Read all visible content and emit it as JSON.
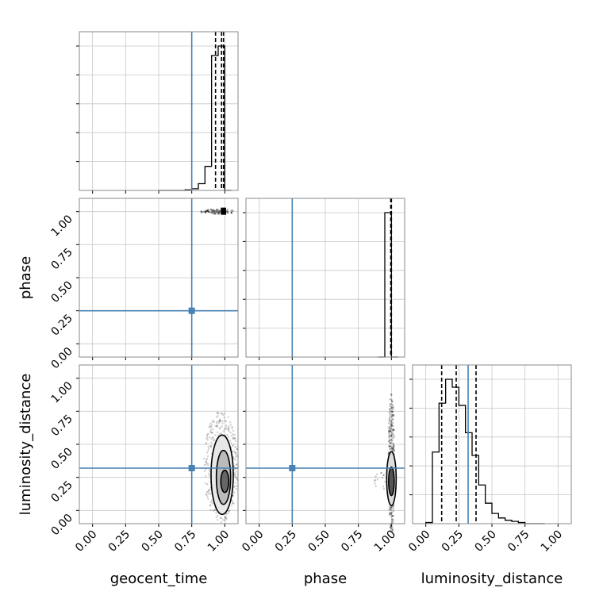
{
  "chart_data": {
    "type": "corner",
    "params": [
      "geocent_time",
      "phase",
      "luminosity_distance"
    ],
    "axis_labels": {
      "geocent_time": "geocent_time",
      "phase": "phase",
      "luminosity_distance": "luminosity_distance"
    },
    "ticks": [
      0.0,
      0.25,
      0.5,
      0.75,
      1.0
    ],
    "tick_labels": [
      "0.00",
      "0.25",
      "0.50",
      "0.75",
      "1.00"
    ],
    "range": [
      -0.1,
      1.1
    ],
    "grid": true,
    "truth_color": "#4682b4",
    "truths": {
      "geocent_time": 0.75,
      "phase": 0.25,
      "luminosity_distance": 0.32
    },
    "histograms": {
      "geocent_time": {
        "bin_edges": [
          0.5,
          0.55,
          0.6,
          0.65,
          0.7,
          0.75,
          0.8,
          0.85,
          0.9,
          0.95,
          1.0,
          1.05
        ],
        "counts": [
          0,
          0,
          0,
          0,
          1,
          3,
          12,
          43,
          241,
          258,
          0
        ],
        "quantiles": [
          0.93,
          0.975,
          0.99
        ]
      },
      "phase": {
        "bin_edges": [
          0.9,
          0.95,
          1.0,
          1.05
        ],
        "counts": [
          0,
          1,
          0
        ],
        "quantiles": [
          0.995,
          0.998,
          1.0
        ]
      },
      "luminosity_distance": {
        "bin_edges": [
          0.0,
          0.05,
          0.1,
          0.15,
          0.2,
          0.25,
          0.3,
          0.35,
          0.4,
          0.45,
          0.5,
          0.55,
          0.6,
          0.65,
          0.7,
          0.75,
          0.8,
          0.85,
          0.9
        ],
        "counts": [
          1,
          63,
          106,
          127,
          120,
          104,
          80,
          60,
          34,
          18,
          9,
          5,
          3,
          2,
          1,
          0,
          0,
          0
        ],
        "quantiles": [
          0.12,
          0.23,
          0.38
        ]
      }
    },
    "scatter": {
      "phase_vs_geocent_time": {
        "x": [
          0.93,
          1.0
        ],
        "y": [
          1.0,
          1.0
        ]
      },
      "luminosity_distance_vs_geocent_time": {
        "x": [
          0.9,
          1.02
        ],
        "y": [
          0.1,
          0.8
        ]
      },
      "luminosity_distance_vs_phase": {
        "x": [
          0.98,
          1.02
        ],
        "y": [
          0.1,
          0.82
        ]
      }
    }
  }
}
